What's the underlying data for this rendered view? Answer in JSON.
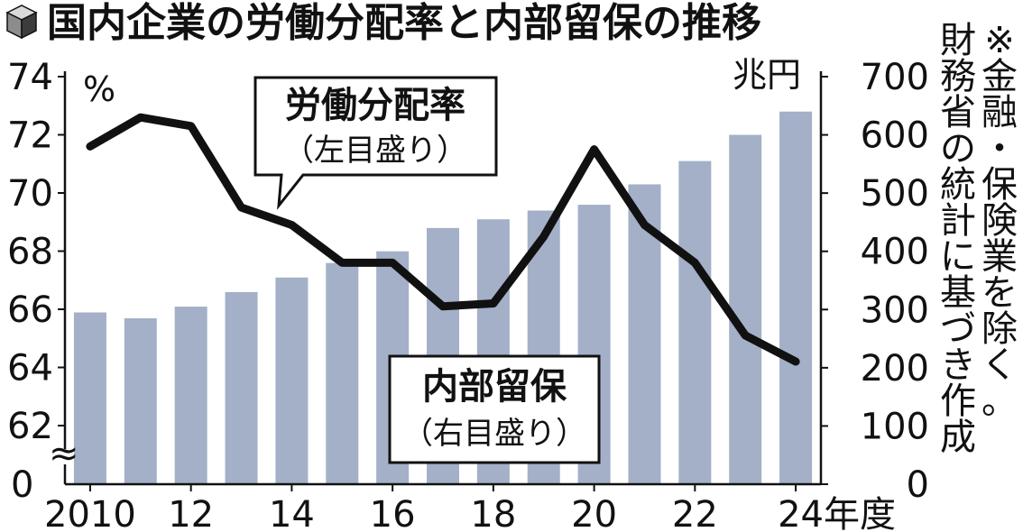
{
  "title": "国内企業の労働分配率と内部留保の推移",
  "note": "※金融・保険業を除く。財務省の統計に基づき作成",
  "colors": {
    "bar": "#a3b0c8",
    "line": "#111111",
    "box": "#111111"
  },
  "chart_data": {
    "type": "bar+line",
    "x_tick_labels": [
      "2010",
      "12",
      "14",
      "16",
      "18",
      "20",
      "22",
      "24年度"
    ],
    "categories": [
      "2010",
      "2011",
      "2012",
      "2013",
      "2014",
      "2015",
      "2016",
      "2017",
      "2018",
      "2019",
      "2020",
      "2021",
      "2022",
      "2023",
      "2024"
    ],
    "left_axis": {
      "unit": "%",
      "ylim": [
        62,
        74
      ],
      "ticks": [
        "74",
        "72",
        "70",
        "68",
        "66",
        "64",
        "62"
      ],
      "zero_label": "0",
      "break_symbol": "≈"
    },
    "right_axis": {
      "unit": "兆円",
      "ylim": [
        0,
        700
      ],
      "ticks": [
        "700",
        "600",
        "500",
        "400",
        "300",
        "200",
        "100",
        "0"
      ]
    },
    "series": [
      {
        "name": "内部留保",
        "axis_note": "（右目盛り）",
        "kind": "bar",
        "values": [
          295,
          285,
          305,
          330,
          355,
          380,
          400,
          440,
          455,
          470,
          480,
          515,
          555,
          600,
          640
        ]
      },
      {
        "name": "労働分配率",
        "axis_note": "（左目盛り）",
        "kind": "line",
        "values": [
          71.6,
          72.6,
          72.3,
          69.5,
          68.9,
          67.6,
          67.6,
          66.1,
          66.2,
          68.5,
          71.5,
          68.9,
          67.6,
          65.1,
          64.2
        ]
      }
    ]
  }
}
